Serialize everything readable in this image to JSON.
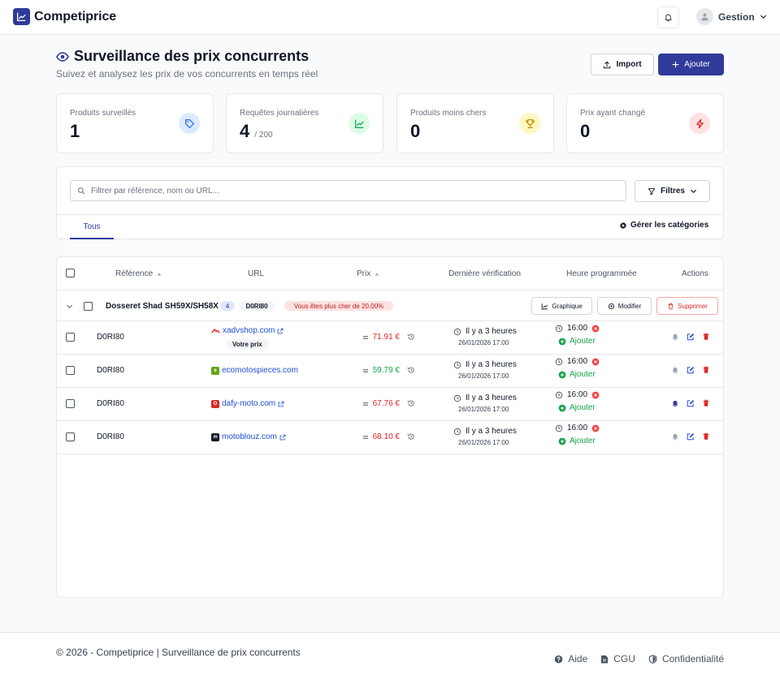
{
  "app": {
    "name": "Competiprice",
    "user": "Gestion"
  },
  "header": {
    "title": "Surveillance des prix concurrents",
    "subtitle": "Suivez et analysez les prix de vos concurrents en temps réel",
    "import_label": "Import",
    "add_label": "Ajouter"
  },
  "stats": [
    {
      "label": "Produits surveillés",
      "value": "1",
      "suffix": "",
      "icon": "tag-icon",
      "color": "#2563eb"
    },
    {
      "label": "Requêtes journalières",
      "value": "4",
      "suffix": "/ 200",
      "icon": "chart-icon",
      "color": "#16a34a"
    },
    {
      "label": "Produits moins chers",
      "value": "0",
      "suffix": "",
      "icon": "trophy-icon",
      "color": "#ca8a04"
    },
    {
      "label": "Prix ayant changé",
      "value": "0",
      "suffix": "",
      "icon": "bolt-icon",
      "color": "#dc2626"
    }
  ],
  "filters": {
    "search_placeholder": "Filtrer par référence, nom ou URL...",
    "filters_label": "Filtres",
    "tab_all": "Tous",
    "manage_categories": "Gérer les catégories"
  },
  "table": {
    "headers": {
      "reference": "Référence",
      "url": "URL",
      "price": "Prix",
      "last_check": "Dernière vérification",
      "scheduled": "Heure programmée",
      "actions": "Actions"
    },
    "group": {
      "name": "Dosseret Shad SH59X/SH58X",
      "count": "4",
      "reference": "D0RI80",
      "warning": "Vous êtes plus cher de 20.00%",
      "chart_label": "Graphique",
      "edit_label": "Modifier",
      "delete_label": "Supprimer"
    },
    "rows": [
      {
        "reference": "D0RI80",
        "site": "xadvshop.com",
        "your_price": "Votre prix",
        "price": "71.91 €",
        "price_color": "#dc2626",
        "check": "Il y a 3 heures",
        "date": "26/01/2026 17:00",
        "time": "16:00",
        "add": "Ajouter",
        "bell_active": false
      },
      {
        "reference": "D0RI80",
        "site": "ecomotospieces.com",
        "your_price": "",
        "price": "59.79 €",
        "price_color": "#16a34a",
        "check": "Il y a 3 heures",
        "date": "26/01/2026 17:00",
        "time": "16:00",
        "add": "Ajouter",
        "bell_active": false
      },
      {
        "reference": "D0RI80",
        "site": "dafy-moto.com",
        "your_price": "",
        "price": "67.76 €",
        "price_color": "#dc2626",
        "check": "Il y a 3 heures",
        "date": "26/01/2026 17:00",
        "time": "16:00",
        "add": "Ajouter",
        "bell_active": true
      },
      {
        "reference": "D0RI80",
        "site": "motoblouz.com",
        "your_price": "",
        "price": "68.10 €",
        "price_color": "#dc2626",
        "check": "Il y a 3 heures",
        "date": "26/01/2026 17:00",
        "time": "16:00",
        "add": "Ajouter",
        "bell_active": false
      }
    ]
  },
  "footer": {
    "copyright": "© 2026 - Competiprice | Surveillance de prix concurrents",
    "help": "Aide",
    "terms": "CGU",
    "privacy": "Confidentialité"
  }
}
